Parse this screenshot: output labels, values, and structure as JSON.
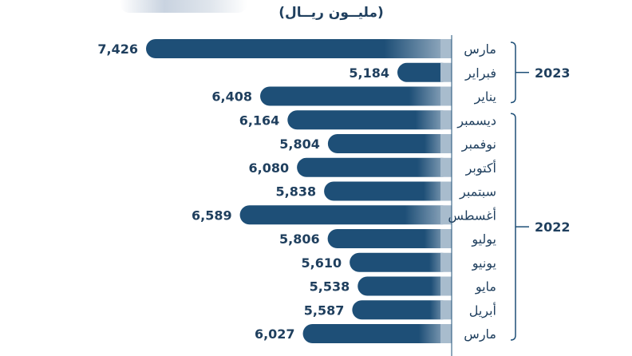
{
  "unit_label": "(مليــون ريــال)",
  "colors": {
    "bar": "#1e4f77",
    "text": "#1f3f5e",
    "axis": "#1e4f77"
  },
  "chart_data": {
    "type": "bar",
    "orientation": "horizontal",
    "categories": [
      "مارس",
      "فبراير",
      "يناير",
      "ديسمبر",
      "نوفمبر",
      "أكتوبر",
      "سبتمبر",
      "أغسطس",
      "يوليو",
      "يونيو",
      "مايو",
      "أبريل",
      "مارس"
    ],
    "values": [
      7426,
      5184,
      6408,
      6164,
      5804,
      6080,
      5838,
      6589,
      5806,
      5610,
      5538,
      5587,
      6027
    ],
    "value_labels": [
      "7,426",
      "5,184",
      "6,408",
      "6,164",
      "5,804",
      "6,080",
      "5,838",
      "6,589",
      "5,806",
      "5,610",
      "5,538",
      "5,587",
      "6,027"
    ],
    "groups": [
      {
        "label": "2023",
        "start": 0,
        "end": 2
      },
      {
        "label": "2022",
        "start": 3,
        "end": 12
      }
    ]
  }
}
